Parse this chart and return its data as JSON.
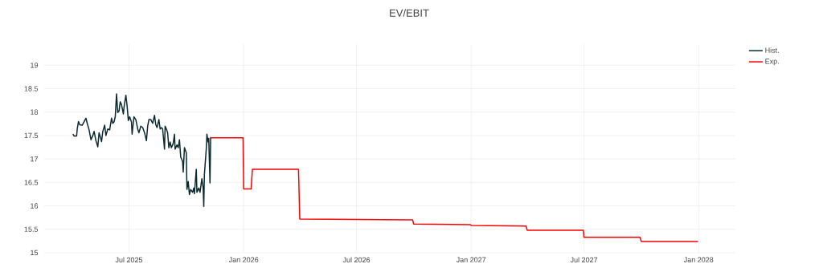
{
  "chart_data": {
    "type": "line",
    "title": "EV/EBIT",
    "x": [
      "2025-04-02",
      "2025-04-04",
      "2025-04-08",
      "2025-04-09",
      "2025-04-11",
      "2025-04-13",
      "2025-04-17",
      "2025-04-21",
      "2025-04-23",
      "2025-04-25",
      "2025-04-28",
      "2025-05-01",
      "2025-05-04",
      "2025-05-06",
      "2025-05-09",
      "2025-05-12",
      "2025-05-14",
      "2025-05-16",
      "2025-05-18",
      "2025-05-20",
      "2025-05-23",
      "2025-05-25",
      "2025-05-28",
      "2025-05-31",
      "2025-06-03",
      "2025-06-05",
      "2025-06-07",
      "2025-06-09",
      "2025-06-11",
      "2025-06-13",
      "2025-06-15",
      "2025-06-17",
      "2025-06-19",
      "2025-06-22",
      "2025-06-23",
      "2025-06-26",
      "2025-06-28",
      "2025-06-30",
      "2025-07-02",
      "2025-07-05",
      "2025-07-06",
      "2025-07-09",
      "2025-07-12",
      "2025-07-15",
      "2025-07-17",
      "2025-07-20",
      "2025-07-23",
      "2025-07-26",
      "2025-07-29",
      "2025-07-31",
      "2025-08-02",
      "2025-08-05",
      "2025-08-08",
      "2025-08-11",
      "2025-08-13",
      "2025-08-15",
      "2025-08-18",
      "2025-08-20",
      "2025-08-22",
      "2025-08-24",
      "2025-08-27",
      "2025-08-28",
      "2025-08-30",
      "2025-09-01",
      "2025-09-03",
      "2025-09-05",
      "2025-09-07",
      "2025-09-10",
      "2025-09-12",
      "2025-09-13",
      "2025-09-16",
      "2025-09-18",
      "2025-09-20",
      "2025-09-22",
      "2025-09-25",
      "2025-09-26",
      "2025-09-28",
      "2025-10-01",
      "2025-10-02",
      "2025-10-04",
      "2025-10-06",
      "2025-10-08",
      "2025-10-11",
      "2025-10-13",
      "2025-10-14",
      "2025-10-17",
      "2025-10-18",
      "2025-10-21",
      "2025-10-23",
      "2025-10-26",
      "2025-10-28",
      "2025-10-29",
      "2025-10-30",
      "2025-11-02",
      "2025-11-03",
      "2025-11-05",
      "2025-11-06",
      "2025-11-08",
      "2025-11-09"
    ],
    "series": [
      {
        "name": "Hist.",
        "color": "#0b2a2f",
        "values": [
          17.53,
          17.49,
          17.49,
          17.64,
          17.8,
          17.73,
          17.72,
          17.82,
          17.87,
          17.76,
          17.62,
          17.41,
          17.5,
          17.59,
          17.39,
          17.26,
          17.56,
          17.47,
          17.37,
          17.59,
          17.72,
          17.5,
          17.64,
          17.62,
          17.87,
          17.76,
          17.79,
          17.9,
          18.39,
          17.99,
          18.02,
          18.22,
          18.16,
          17.96,
          18.1,
          18.36,
          18.13,
          17.82,
          17.9,
          17.79,
          17.53,
          17.9,
          17.84,
          17.64,
          17.56,
          17.7,
          17.67,
          17.56,
          17.39,
          17.7,
          17.84,
          17.84,
          17.76,
          17.93,
          17.73,
          17.67,
          17.84,
          17.64,
          17.67,
          17.64,
          17.21,
          17.7,
          17.64,
          17.56,
          17.24,
          17.36,
          17.24,
          17.33,
          17.53,
          17.21,
          17.3,
          17.24,
          17.41,
          17.04,
          16.95,
          16.72,
          17.24,
          17.13,
          16.35,
          16.52,
          16.24,
          16.35,
          16.29,
          16.38,
          16.26,
          16.78,
          16.29,
          16.38,
          16.29,
          16.58,
          16.38,
          15.99,
          16.67,
          17.21,
          17.53,
          17.36,
          17.44,
          16.49,
          17.47
        ]
      },
      {
        "name": "Exp.",
        "color": "#ff0000",
        "x": [
          "2025-11-09",
          "2025-12-31",
          "2026-01-01",
          "2026-01-13",
          "2026-01-15",
          "2026-03-30",
          "2026-04-01",
          "2026-09-29",
          "2026-10-01",
          "2026-12-31",
          "2027-01-01",
          "2027-03-30",
          "2027-04-01",
          "2027-06-30",
          "2027-07-01",
          "2027-09-29",
          "2027-10-01",
          "2027-12-31"
        ],
        "values": [
          17.45,
          17.45,
          16.36,
          16.36,
          16.78,
          16.78,
          15.72,
          15.7,
          15.61,
          15.6,
          15.58,
          15.57,
          15.48,
          15.48,
          15.33,
          15.33,
          15.24,
          15.24
        ]
      }
    ],
    "xlim": [
      "2025-02-15",
      "2028-02-29"
    ],
    "xticks": [
      {
        "value": "2025-07-01",
        "label": "Jul 2025"
      },
      {
        "value": "2026-01-01",
        "label": "Jan 2026"
      },
      {
        "value": "2026-07-01",
        "label": "Jul 2026"
      },
      {
        "value": "2027-01-01",
        "label": "Jan 2027"
      },
      {
        "value": "2027-07-01",
        "label": "Jul 2027"
      },
      {
        "value": "2028-01-01",
        "label": "Jan 2028"
      }
    ],
    "ylim": [
      15,
      19.45
    ],
    "yticks": [
      15,
      15.5,
      16,
      16.5,
      17,
      17.5,
      18,
      18.5,
      19
    ],
    "grid": true,
    "legend": "top right",
    "marker": "none",
    "line_style": "solid"
  }
}
